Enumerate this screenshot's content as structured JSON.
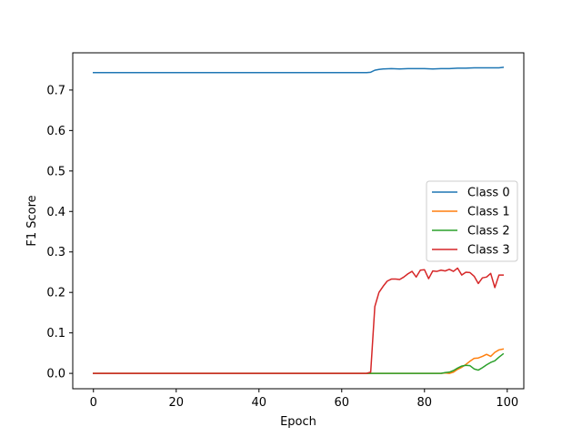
{
  "chart_data": {
    "type": "line",
    "title": "",
    "xlabel": "Epoch",
    "ylabel": "F1 Score",
    "xlim": [
      -5,
      104
    ],
    "ylim": [
      -0.038,
      0.792
    ],
    "xticks": [
      0,
      20,
      40,
      60,
      80,
      100
    ],
    "yticks": [
      0.0,
      0.1,
      0.2,
      0.3,
      0.4,
      0.5,
      0.6,
      0.7
    ],
    "ytick_labels": [
      "0.0",
      "0.1",
      "0.2",
      "0.3",
      "0.4",
      "0.5",
      "0.6",
      "0.7"
    ],
    "grid": false,
    "legend_position": "center-right",
    "series": [
      {
        "name": "Class 0",
        "color": "#1f77b4",
        "points": [
          [
            0,
            0.743
          ],
          [
            10,
            0.743
          ],
          [
            20,
            0.743
          ],
          [
            30,
            0.743
          ],
          [
            40,
            0.743
          ],
          [
            50,
            0.743
          ],
          [
            60,
            0.743
          ],
          [
            66,
            0.743
          ],
          [
            67,
            0.744
          ],
          [
            68,
            0.749
          ],
          [
            69,
            0.751
          ],
          [
            70,
            0.752
          ],
          [
            72,
            0.753
          ],
          [
            74,
            0.752
          ],
          [
            76,
            0.753
          ],
          [
            78,
            0.753
          ],
          [
            80,
            0.753
          ],
          [
            82,
            0.752
          ],
          [
            84,
            0.753
          ],
          [
            86,
            0.753
          ],
          [
            88,
            0.754
          ],
          [
            90,
            0.754
          ],
          [
            92,
            0.755
          ],
          [
            94,
            0.755
          ],
          [
            96,
            0.755
          ],
          [
            98,
            0.755
          ],
          [
            99,
            0.756
          ]
        ]
      },
      {
        "name": "Class 1",
        "color": "#ff7f0e",
        "points": [
          [
            0,
            0.0
          ],
          [
            10,
            0.0
          ],
          [
            20,
            0.0
          ],
          [
            30,
            0.0
          ],
          [
            40,
            0.0
          ],
          [
            50,
            0.0
          ],
          [
            60,
            0.0
          ],
          [
            70,
            0.0
          ],
          [
            80,
            0.0
          ],
          [
            84,
            0.0
          ],
          [
            85,
            0.001
          ],
          [
            86,
            0.0
          ],
          [
            87,
            0.003
          ],
          [
            88,
            0.01
          ],
          [
            89,
            0.015
          ],
          [
            90,
            0.022
          ],
          [
            91,
            0.03
          ],
          [
            92,
            0.037
          ],
          [
            93,
            0.038
          ],
          [
            94,
            0.042
          ],
          [
            95,
            0.047
          ],
          [
            96,
            0.042
          ],
          [
            97,
            0.052
          ],
          [
            98,
            0.058
          ],
          [
            99,
            0.06
          ]
        ]
      },
      {
        "name": "Class 2",
        "color": "#2ca02c",
        "points": [
          [
            0,
            0.0
          ],
          [
            10,
            0.0
          ],
          [
            20,
            0.0
          ],
          [
            30,
            0.0
          ],
          [
            40,
            0.0
          ],
          [
            50,
            0.0
          ],
          [
            60,
            0.0
          ],
          [
            70,
            0.0
          ],
          [
            80,
            0.0
          ],
          [
            84,
            0.0
          ],
          [
            85,
            0.002
          ],
          [
            86,
            0.003
          ],
          [
            87,
            0.007
          ],
          [
            88,
            0.013
          ],
          [
            89,
            0.018
          ],
          [
            90,
            0.02
          ],
          [
            91,
            0.019
          ],
          [
            92,
            0.011
          ],
          [
            93,
            0.008
          ],
          [
            94,
            0.014
          ],
          [
            95,
            0.021
          ],
          [
            96,
            0.027
          ],
          [
            97,
            0.031
          ],
          [
            98,
            0.04
          ],
          [
            99,
            0.048
          ]
        ]
      },
      {
        "name": "Class 3",
        "color": "#d62728",
        "points": [
          [
            0,
            0.0
          ],
          [
            10,
            0.0
          ],
          [
            20,
            0.0
          ],
          [
            30,
            0.0
          ],
          [
            40,
            0.0
          ],
          [
            50,
            0.0
          ],
          [
            60,
            0.0
          ],
          [
            66,
            0.0
          ],
          [
            67,
            0.003
          ],
          [
            68,
            0.165
          ],
          [
            69,
            0.2
          ],
          [
            70,
            0.215
          ],
          [
            71,
            0.228
          ],
          [
            72,
            0.233
          ],
          [
            73,
            0.233
          ],
          [
            74,
            0.232
          ],
          [
            75,
            0.238
          ],
          [
            76,
            0.246
          ],
          [
            77,
            0.252
          ],
          [
            78,
            0.238
          ],
          [
            79,
            0.255
          ],
          [
            80,
            0.256
          ],
          [
            81,
            0.234
          ],
          [
            82,
            0.253
          ],
          [
            83,
            0.252
          ],
          [
            84,
            0.255
          ],
          [
            85,
            0.253
          ],
          [
            86,
            0.257
          ],
          [
            87,
            0.252
          ],
          [
            88,
            0.26
          ],
          [
            89,
            0.243
          ],
          [
            90,
            0.25
          ],
          [
            91,
            0.249
          ],
          [
            92,
            0.24
          ],
          [
            93,
            0.222
          ],
          [
            94,
            0.236
          ],
          [
            95,
            0.238
          ],
          [
            96,
            0.247
          ],
          [
            97,
            0.212
          ],
          [
            98,
            0.243
          ],
          [
            99,
            0.243
          ]
        ]
      }
    ]
  }
}
